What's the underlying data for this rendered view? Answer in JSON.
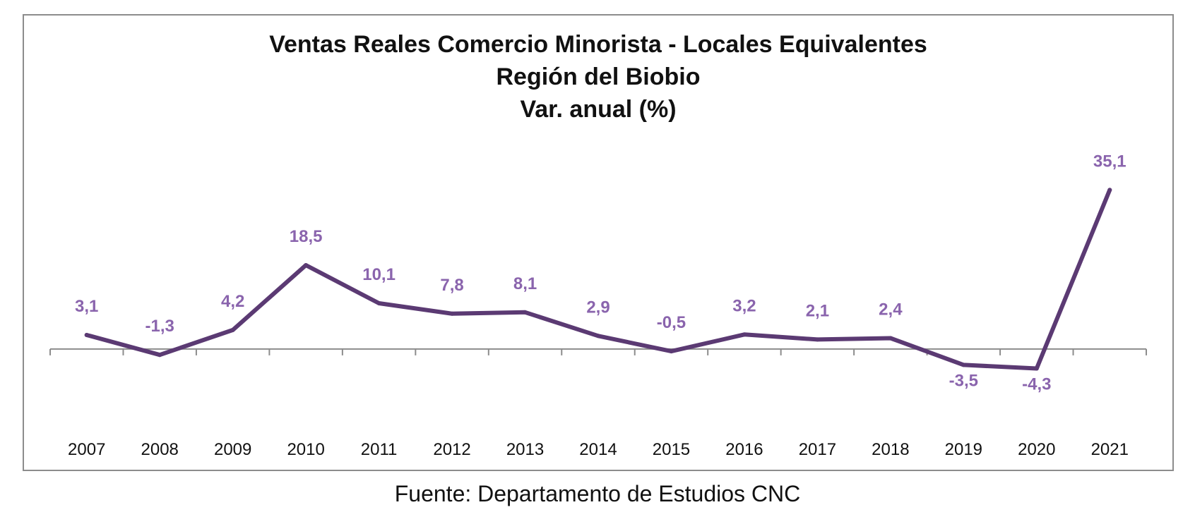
{
  "chart_data": {
    "type": "line",
    "title": "Ventas Reales Comercio Minorista - Locales Equivalentes",
    "subtitle": "Región del Biobio",
    "subtitle2": "Var. anual (%)",
    "xlabel": "",
    "ylabel": "",
    "categories": [
      "2007",
      "2008",
      "2009",
      "2010",
      "2011",
      "2012",
      "2013",
      "2014",
      "2015",
      "2016",
      "2017",
      "2018",
      "2019",
      "2020",
      "2021"
    ],
    "series": [
      {
        "values": [
          3.1,
          -1.3,
          4.2,
          18.5,
          10.1,
          7.8,
          8.1,
          2.9,
          -0.5,
          3.2,
          2.1,
          2.4,
          -3.5,
          -4.3,
          35.1
        ],
        "labels": [
          "3,1",
          "-1,3",
          "4,2",
          "18,5",
          "10,1",
          "7,8",
          "8,1",
          "2,9",
          "-0,5",
          "3,2",
          "2,1",
          "2,4",
          "-3,5",
          "-4,3",
          "35,1"
        ]
      }
    ],
    "ylim": [
      -12,
      42
    ],
    "y_axis_visible": false,
    "grid": false,
    "line_color": "#5b3a73",
    "label_color": "#8a64ad",
    "axis_color": "#8c8c8c"
  },
  "footer": {
    "source": "Fuente: Departamento de Estudios CNC"
  }
}
